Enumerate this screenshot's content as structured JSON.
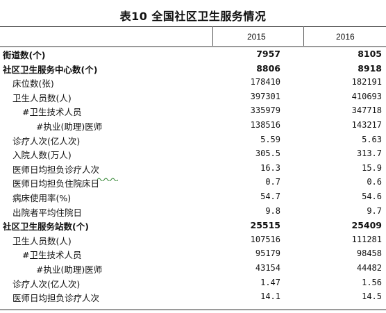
{
  "title": "表10  全国社区卫生服务情况",
  "columns": [
    "2015",
    "2016"
  ],
  "rows": [
    {
      "label": "街道数(个)",
      "v2015": "7957",
      "v2016": "8105",
      "bold": true,
      "indent": 0
    },
    {
      "label": "社区卫生服务中心数(个)",
      "v2015": "8806",
      "v2016": "8918",
      "bold": true,
      "indent": 0
    },
    {
      "label": "床位数(张)",
      "v2015": "178410",
      "v2016": "182191",
      "bold": false,
      "indent": 1
    },
    {
      "label": "卫生人员数(人)",
      "v2015": "397301",
      "v2016": "410693",
      "bold": false,
      "indent": 1
    },
    {
      "label": "#卫生技术人员",
      "v2015": "335979",
      "v2016": "347718",
      "bold": false,
      "indent": 2
    },
    {
      "label": "#执业(助理)医师",
      "v2015": "138516",
      "v2016": "143217",
      "bold": false,
      "indent": 3
    },
    {
      "label": "诊疗人次(亿人次)",
      "v2015": "5.59",
      "v2016": "5.63",
      "bold": false,
      "indent": 1
    },
    {
      "label": "入院人数(万人)",
      "v2015": "305.5",
      "v2016": "313.7",
      "bold": false,
      "indent": 1
    },
    {
      "label": "医师日均担负诊疗人次",
      "v2015": "16.3",
      "v2016": "15.9",
      "bold": false,
      "indent": 1
    },
    {
      "label": "医师日均担负住院床日",
      "v2015": "0.7",
      "v2016": "0.6",
      "bold": false,
      "indent": 1
    },
    {
      "label": "病床使用率(%)",
      "v2015": "54.7",
      "v2016": "54.6",
      "bold": false,
      "indent": 1
    },
    {
      "label": "出院者平均住院日",
      "v2015": "9.8",
      "v2016": "9.7",
      "bold": false,
      "indent": 1
    },
    {
      "label": "社区卫生服务站数(个)",
      "v2015": "25515",
      "v2016": "25409",
      "bold": true,
      "indent": 0
    },
    {
      "label": "卫生人员数(人)",
      "v2015": "107516",
      "v2016": "111281",
      "bold": false,
      "indent": 1
    },
    {
      "label": "#卫生技术人员",
      "v2015": "95179",
      "v2016": "98458",
      "bold": false,
      "indent": 2
    },
    {
      "label": "#执业(助理)医师",
      "v2015": "43154",
      "v2016": "44482",
      "bold": false,
      "indent": 3
    },
    {
      "label": "诊疗人次(亿人次)",
      "v2015": "1.47",
      "v2016": "1.56",
      "bold": false,
      "indent": 1
    },
    {
      "label": "医师日均担负诊疗人次",
      "v2015": "14.1",
      "v2016": "14.5",
      "bold": false,
      "indent": 1
    }
  ]
}
